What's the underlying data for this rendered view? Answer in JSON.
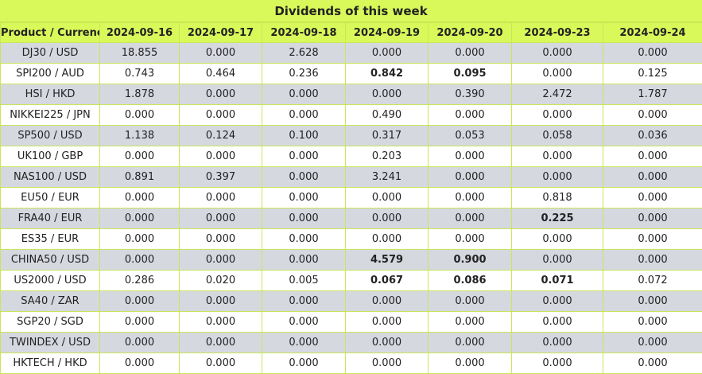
{
  "title": "Dividends of this week",
  "colors": {
    "header_bg": "#d9f95a",
    "row_alt": "#d6d8e0",
    "border": "#c9e65a"
  },
  "headers": [
    "Product / Currency",
    "2024-09-16",
    "2024-09-17",
    "2024-09-18",
    "2024-09-19",
    "2024-09-20",
    "2024-09-23",
    "2024-09-24"
  ],
  "rows": [
    {
      "product": "DJ30 / USD",
      "values": [
        "18.855",
        "0.000",
        "2.628",
        "0.000",
        "0.000",
        "0.000",
        "0.000"
      ],
      "bold": []
    },
    {
      "product": "SPI200 / AUD",
      "values": [
        "0.743",
        "0.464",
        "0.236",
        "0.842",
        "0.095",
        "0.000",
        "0.125"
      ],
      "bold": [
        3,
        4
      ]
    },
    {
      "product": "HSI / HKD",
      "values": [
        "1.878",
        "0.000",
        "0.000",
        "0.000",
        "0.390",
        "2.472",
        "1.787"
      ],
      "bold": []
    },
    {
      "product": "NIKKEI225 / JPN",
      "values": [
        "0.000",
        "0.000",
        "0.000",
        "0.490",
        "0.000",
        "0.000",
        "0.000"
      ],
      "bold": []
    },
    {
      "product": "SP500 / USD",
      "values": [
        "1.138",
        "0.124",
        "0.100",
        "0.317",
        "0.053",
        "0.058",
        "0.036"
      ],
      "bold": []
    },
    {
      "product": "UK100 / GBP",
      "values": [
        "0.000",
        "0.000",
        "0.000",
        "0.203",
        "0.000",
        "0.000",
        "0.000"
      ],
      "bold": []
    },
    {
      "product": "NAS100 / USD",
      "values": [
        "0.891",
        "0.397",
        "0.000",
        "3.241",
        "0.000",
        "0.000",
        "0.000"
      ],
      "bold": []
    },
    {
      "product": "EU50 / EUR",
      "values": [
        "0.000",
        "0.000",
        "0.000",
        "0.000",
        "0.000",
        "0.818",
        "0.000"
      ],
      "bold": []
    },
    {
      "product": "FRA40 / EUR",
      "values": [
        "0.000",
        "0.000",
        "0.000",
        "0.000",
        "0.000",
        "0.225",
        "0.000"
      ],
      "bold": [
        5
      ]
    },
    {
      "product": "ES35 / EUR",
      "values": [
        "0.000",
        "0.000",
        "0.000",
        "0.000",
        "0.000",
        "0.000",
        "0.000"
      ],
      "bold": []
    },
    {
      "product": "CHINA50 / USD",
      "values": [
        "0.000",
        "0.000",
        "0.000",
        "4.579",
        "0.900",
        "0.000",
        "0.000"
      ],
      "bold": [
        3,
        4
      ]
    },
    {
      "product": "US2000 / USD",
      "values": [
        "0.286",
        "0.020",
        "0.005",
        "0.067",
        "0.086",
        "0.071",
        "0.072"
      ],
      "bold": [
        3,
        4,
        5
      ]
    },
    {
      "product": "SA40 / ZAR",
      "values": [
        "0.000",
        "0.000",
        "0.000",
        "0.000",
        "0.000",
        "0.000",
        "0.000"
      ],
      "bold": []
    },
    {
      "product": "SGP20 / SGD",
      "values": [
        "0.000",
        "0.000",
        "0.000",
        "0.000",
        "0.000",
        "0.000",
        "0.000"
      ],
      "bold": []
    },
    {
      "product": "TWINDEX / USD",
      "values": [
        "0.000",
        "0.000",
        "0.000",
        "0.000",
        "0.000",
        "0.000",
        "0.000"
      ],
      "bold": []
    },
    {
      "product": "HKTECH / HKD",
      "values": [
        "0.000",
        "0.000",
        "0.000",
        "0.000",
        "0.000",
        "0.000",
        "0.000"
      ],
      "bold": []
    }
  ]
}
